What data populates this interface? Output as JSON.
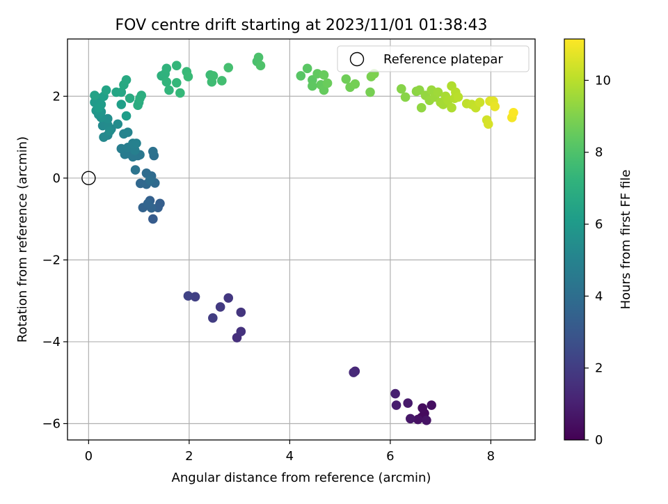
{
  "chart_data": {
    "type": "scatter",
    "title": "FOV centre drift starting at 2023/11/01 01:38:43",
    "xlabel": "Angular distance from reference (arcmin)",
    "ylabel": "Rotation from reference (arcmin)",
    "xlim": [
      -0.42,
      8.88
    ],
    "ylim": [
      -6.4,
      3.4
    ],
    "xticks": [
      0,
      2,
      4,
      6,
      8
    ],
    "yticks": [
      -6,
      -4,
      -2,
      0,
      2
    ],
    "xtick_labels": [
      "0",
      "2",
      "4",
      "6",
      "8"
    ],
    "ytick_labels": [
      "−6",
      "−4",
      "−2",
      "0",
      "2"
    ],
    "grid": true,
    "legend": {
      "position": "top-right",
      "entries": [
        "Reference platepar"
      ]
    },
    "colorbar": {
      "label": "Hours from first FF file",
      "colormap": "viridis",
      "range": [
        0,
        11.15
      ],
      "ticks": [
        0,
        2,
        4,
        6,
        8,
        10
      ],
      "tick_labels": [
        "0",
        "2",
        "4",
        "6",
        "8",
        "10"
      ]
    },
    "reference_point": {
      "x": 0,
      "y": 0
    },
    "series": [
      {
        "points": [
          {
            "x": 6.62,
            "y": -5.85,
            "h": 0.2
          },
          {
            "x": 6.68,
            "y": -5.75,
            "h": 0.3
          },
          {
            "x": 6.64,
            "y": -5.62,
            "h": 0.35
          },
          {
            "x": 6.82,
            "y": -5.55,
            "h": 0.45
          },
          {
            "x": 6.55,
            "y": -5.9,
            "h": 0.5
          },
          {
            "x": 6.72,
            "y": -5.92,
            "h": 0.6
          },
          {
            "x": 6.4,
            "y": -5.88,
            "h": 0.7
          },
          {
            "x": 6.35,
            "y": -5.5,
            "h": 0.8
          },
          {
            "x": 6.12,
            "y": -5.55,
            "h": 0.9
          },
          {
            "x": 6.1,
            "y": -5.27,
            "h": 1.0
          },
          {
            "x": 5.3,
            "y": -4.72,
            "h": 1.2
          },
          {
            "x": 5.27,
            "y": -4.75,
            "h": 1.3
          },
          {
            "x": 2.95,
            "y": -3.9,
            "h": 1.5
          },
          {
            "x": 3.03,
            "y": -3.75,
            "h": 1.6
          },
          {
            "x": 3.03,
            "y": -3.28,
            "h": 1.7
          },
          {
            "x": 2.78,
            "y": -2.93,
            "h": 1.8
          },
          {
            "x": 2.62,
            "y": -3.15,
            "h": 1.9
          },
          {
            "x": 2.47,
            "y": -3.42,
            "h": 2.0
          },
          {
            "x": 2.12,
            "y": -2.9,
            "h": 2.1
          },
          {
            "x": 1.98,
            "y": -2.88,
            "h": 2.2
          },
          {
            "x": 1.28,
            "y": -1.0,
            "h": 3.2
          },
          {
            "x": 1.42,
            "y": -0.62,
            "h": 3.3
          },
          {
            "x": 1.38,
            "y": -0.72,
            "h": 3.35
          },
          {
            "x": 1.22,
            "y": -0.55,
            "h": 3.4
          },
          {
            "x": 1.08,
            "y": -0.72,
            "h": 3.5
          },
          {
            "x": 1.25,
            "y": -0.73,
            "h": 3.55
          },
          {
            "x": 1.18,
            "y": -0.62,
            "h": 3.6
          },
          {
            "x": 1.03,
            "y": -0.13,
            "h": 3.7
          },
          {
            "x": 1.15,
            "y": -0.15,
            "h": 3.75
          },
          {
            "x": 1.32,
            "y": -0.12,
            "h": 3.8
          },
          {
            "x": 1.25,
            "y": 0.05,
            "h": 3.85
          },
          {
            "x": 1.15,
            "y": 0.12,
            "h": 3.9
          },
          {
            "x": 1.22,
            "y": -0.05,
            "h": 4.0
          },
          {
            "x": 1.3,
            "y": 0.55,
            "h": 4.1
          },
          {
            "x": 1.28,
            "y": 0.65,
            "h": 4.2
          },
          {
            "x": 0.93,
            "y": 0.2,
            "h": 4.3
          },
          {
            "x": 0.98,
            "y": 0.55,
            "h": 4.4
          },
          {
            "x": 1.02,
            "y": 0.57,
            "h": 4.45
          },
          {
            "x": 0.88,
            "y": 0.52,
            "h": 4.5
          },
          {
            "x": 0.78,
            "y": 0.6,
            "h": 4.55
          },
          {
            "x": 0.72,
            "y": 0.58,
            "h": 4.6
          },
          {
            "x": 0.65,
            "y": 0.72,
            "h": 4.7
          },
          {
            "x": 0.78,
            "y": 0.75,
            "h": 4.75
          },
          {
            "x": 0.92,
            "y": 0.68,
            "h": 4.8
          },
          {
            "x": 0.88,
            "y": 0.85,
            "h": 4.85
          },
          {
            "x": 0.95,
            "y": 0.85,
            "h": 4.9
          },
          {
            "x": 0.7,
            "y": 1.08,
            "h": 5.0
          },
          {
            "x": 0.78,
            "y": 1.12,
            "h": 5.05
          },
          {
            "x": 0.38,
            "y": 1.05,
            "h": 5.1
          },
          {
            "x": 0.45,
            "y": 1.2,
            "h": 5.15
          },
          {
            "x": 0.3,
            "y": 1.0,
            "h": 5.2
          },
          {
            "x": 0.28,
            "y": 1.28,
            "h": 5.3
          },
          {
            "x": 0.38,
            "y": 1.3,
            "h": 5.35
          },
          {
            "x": 0.58,
            "y": 1.32,
            "h": 5.4
          },
          {
            "x": 0.42,
            "y": 1.15,
            "h": 5.45
          },
          {
            "x": 0.38,
            "y": 1.45,
            "h": 5.5
          },
          {
            "x": 0.25,
            "y": 1.48,
            "h": 5.6
          },
          {
            "x": 0.2,
            "y": 1.55,
            "h": 5.7
          },
          {
            "x": 0.25,
            "y": 1.62,
            "h": 5.8
          },
          {
            "x": 0.15,
            "y": 1.65,
            "h": 5.9
          },
          {
            "x": 0.12,
            "y": 1.85,
            "h": 6.0
          },
          {
            "x": 0.2,
            "y": 1.95,
            "h": 6.05
          },
          {
            "x": 0.25,
            "y": 1.8,
            "h": 6.1
          },
          {
            "x": 0.2,
            "y": 1.72,
            "h": 6.15
          },
          {
            "x": 0.75,
            "y": 1.52,
            "h": 6.2
          },
          {
            "x": 0.65,
            "y": 1.8,
            "h": 6.25
          },
          {
            "x": 0.3,
            "y": 2.0,
            "h": 6.3
          },
          {
            "x": 0.12,
            "y": 2.02,
            "h": 6.4
          },
          {
            "x": 0.35,
            "y": 2.15,
            "h": 6.5
          },
          {
            "x": 0.55,
            "y": 2.1,
            "h": 6.55
          },
          {
            "x": 0.65,
            "y": 2.1,
            "h": 6.6
          },
          {
            "x": 0.7,
            "y": 2.28,
            "h": 6.7
          },
          {
            "x": 0.75,
            "y": 2.4,
            "h": 6.75
          },
          {
            "x": 0.82,
            "y": 1.95,
            "h": 6.8
          },
          {
            "x": 1.0,
            "y": 1.85,
            "h": 6.85
          },
          {
            "x": 0.98,
            "y": 1.78,
            "h": 6.9
          },
          {
            "x": 1.05,
            "y": 2.02,
            "h": 6.95
          },
          {
            "x": 1.02,
            "y": 1.95,
            "h": 7.0
          },
          {
            "x": 1.45,
            "y": 2.5,
            "h": 7.1
          },
          {
            "x": 1.52,
            "y": 2.55,
            "h": 7.15
          },
          {
            "x": 1.55,
            "y": 2.68,
            "h": 7.2
          },
          {
            "x": 1.55,
            "y": 2.35,
            "h": 7.25
          },
          {
            "x": 1.6,
            "y": 2.15,
            "h": 7.3
          },
          {
            "x": 1.75,
            "y": 2.75,
            "h": 7.35
          },
          {
            "x": 1.75,
            "y": 2.33,
            "h": 7.4
          },
          {
            "x": 1.82,
            "y": 2.08,
            "h": 7.45
          },
          {
            "x": 1.95,
            "y": 2.6,
            "h": 7.5
          },
          {
            "x": 1.98,
            "y": 2.48,
            "h": 7.55
          },
          {
            "x": 2.42,
            "y": 2.52,
            "h": 7.6
          },
          {
            "x": 2.45,
            "y": 2.35,
            "h": 7.65
          },
          {
            "x": 2.48,
            "y": 2.5,
            "h": 7.7
          },
          {
            "x": 2.65,
            "y": 2.38,
            "h": 7.75
          },
          {
            "x": 2.78,
            "y": 2.7,
            "h": 7.8
          },
          {
            "x": 3.35,
            "y": 2.85,
            "h": 7.9
          },
          {
            "x": 3.38,
            "y": 2.95,
            "h": 7.95
          },
          {
            "x": 3.42,
            "y": 2.75,
            "h": 8.0
          },
          {
            "x": 4.22,
            "y": 2.5,
            "h": 8.2
          },
          {
            "x": 4.35,
            "y": 2.68,
            "h": 8.25
          },
          {
            "x": 4.45,
            "y": 2.4,
            "h": 8.3
          },
          {
            "x": 4.45,
            "y": 2.25,
            "h": 8.35
          },
          {
            "x": 4.55,
            "y": 2.55,
            "h": 8.4
          },
          {
            "x": 4.62,
            "y": 2.28,
            "h": 8.45
          },
          {
            "x": 4.68,
            "y": 2.15,
            "h": 8.5
          },
          {
            "x": 4.68,
            "y": 2.52,
            "h": 8.55
          },
          {
            "x": 4.75,
            "y": 2.32,
            "h": 8.6
          },
          {
            "x": 5.12,
            "y": 2.42,
            "h": 8.7
          },
          {
            "x": 5.2,
            "y": 2.22,
            "h": 8.75
          },
          {
            "x": 5.3,
            "y": 2.3,
            "h": 8.8
          },
          {
            "x": 5.6,
            "y": 2.1,
            "h": 8.85
          },
          {
            "x": 5.62,
            "y": 2.48,
            "h": 8.9
          },
          {
            "x": 5.68,
            "y": 2.55,
            "h": 8.95
          },
          {
            "x": 6.22,
            "y": 2.18,
            "h": 9.1
          },
          {
            "x": 6.3,
            "y": 1.98,
            "h": 9.15
          },
          {
            "x": 6.52,
            "y": 2.12,
            "h": 9.2
          },
          {
            "x": 6.58,
            "y": 2.15,
            "h": 9.25
          },
          {
            "x": 6.62,
            "y": 1.72,
            "h": 9.3
          },
          {
            "x": 6.7,
            "y": 2.02,
            "h": 9.35
          },
          {
            "x": 6.78,
            "y": 1.9,
            "h": 9.4
          },
          {
            "x": 6.82,
            "y": 2.15,
            "h": 9.45
          },
          {
            "x": 6.88,
            "y": 1.98,
            "h": 9.5
          },
          {
            "x": 6.95,
            "y": 2.1,
            "h": 9.55
          },
          {
            "x": 7.0,
            "y": 1.85,
            "h": 9.6
          },
          {
            "x": 7.05,
            "y": 1.8,
            "h": 9.65
          },
          {
            "x": 7.1,
            "y": 2.0,
            "h": 9.7
          },
          {
            "x": 7.15,
            "y": 1.9,
            "h": 9.75
          },
          {
            "x": 7.22,
            "y": 1.72,
            "h": 9.8
          },
          {
            "x": 7.22,
            "y": 2.25,
            "h": 9.85
          },
          {
            "x": 7.28,
            "y": 1.95,
            "h": 9.9
          },
          {
            "x": 7.3,
            "y": 2.1,
            "h": 9.95
          },
          {
            "x": 7.35,
            "y": 1.98,
            "h": 10.0
          },
          {
            "x": 7.52,
            "y": 1.82,
            "h": 10.1
          },
          {
            "x": 7.62,
            "y": 1.8,
            "h": 10.15
          },
          {
            "x": 7.7,
            "y": 1.72,
            "h": 10.2
          },
          {
            "x": 7.78,
            "y": 1.85,
            "h": 10.3
          },
          {
            "x": 7.92,
            "y": 1.42,
            "h": 10.4
          },
          {
            "x": 7.95,
            "y": 1.32,
            "h": 10.5
          },
          {
            "x": 7.98,
            "y": 1.88,
            "h": 10.6
          },
          {
            "x": 8.05,
            "y": 1.88,
            "h": 10.7
          },
          {
            "x": 8.08,
            "y": 1.75,
            "h": 10.8
          },
          {
            "x": 8.42,
            "y": 1.48,
            "h": 11.0
          },
          {
            "x": 8.45,
            "y": 1.6,
            "h": 11.1
          }
        ]
      }
    ]
  }
}
